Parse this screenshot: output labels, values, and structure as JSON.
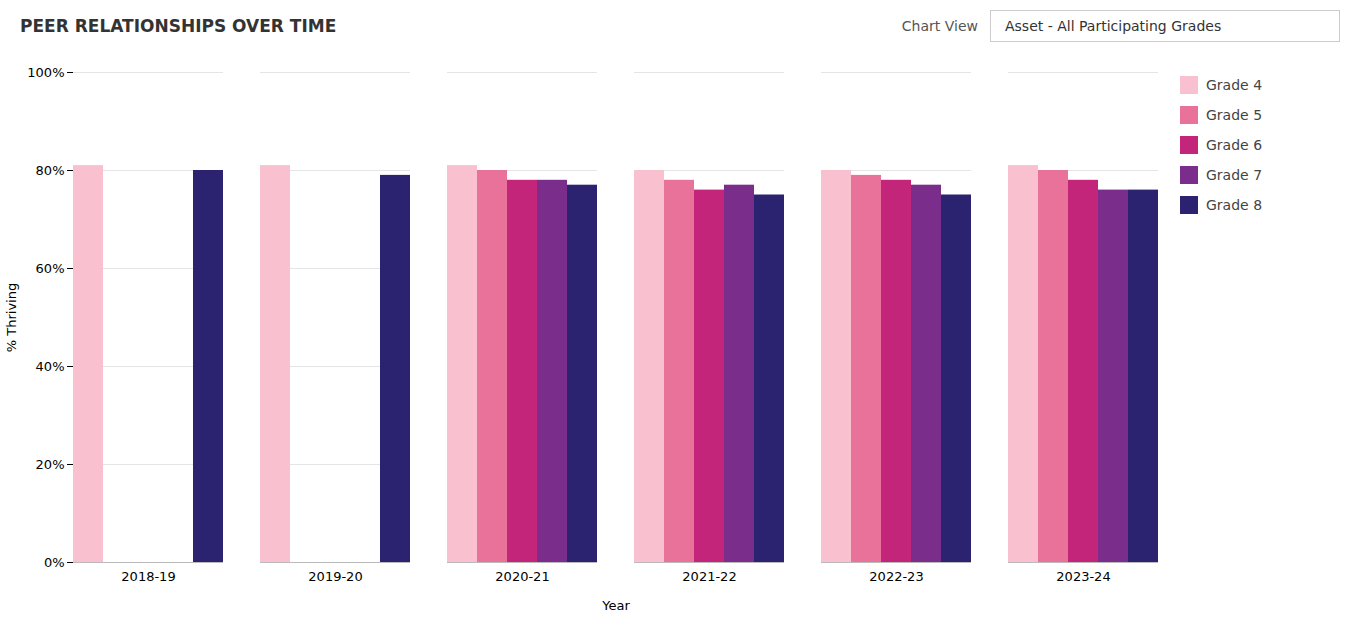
{
  "chart_data": {
    "type": "bar",
    "title": "PEER RELATIONSHIPS OVER TIME",
    "annotations": [
      "Chart View",
      "Asset - All Participating Grades"
    ],
    "xlabel": "Year",
    "ylabel": "% Thriving",
    "categories": [
      "2018-19",
      "2019-20",
      "2020-21",
      "2021-22",
      "2022-23",
      "2023-24"
    ],
    "series": [
      {
        "name": "Grade 4",
        "color": "#f9c0d0",
        "values": [
          0.81,
          0.81,
          0.81,
          0.8,
          0.8,
          0.81
        ]
      },
      {
        "name": "Grade 5",
        "color": "#e8729a",
        "values": [
          null,
          null,
          0.8,
          0.78,
          0.79,
          0.8
        ]
      },
      {
        "name": "Grade 6",
        "color": "#c2257a",
        "values": [
          null,
          null,
          0.78,
          0.76,
          0.78,
          0.78
        ]
      },
      {
        "name": "Grade 7",
        "color": "#7b2d8b",
        "values": [
          null,
          null,
          0.78,
          0.77,
          0.77,
          0.76
        ]
      },
      {
        "name": "Grade 8",
        "color": "#2b2370",
        "values": [
          0.8,
          0.79,
          0.77,
          0.75,
          0.75,
          0.76
        ]
      }
    ],
    "ylim": [
      0,
      1.0
    ],
    "yticks": [
      {
        "value": 0,
        "label": "0%"
      },
      {
        "value": 0.2,
        "label": "20%"
      },
      {
        "value": 0.4,
        "label": "40%"
      },
      {
        "value": 0.6,
        "label": "60%"
      },
      {
        "value": 0.8,
        "label": "80%"
      },
      {
        "value": 1.0,
        "label": "100%"
      }
    ],
    "grid": true,
    "legend": "right"
  }
}
